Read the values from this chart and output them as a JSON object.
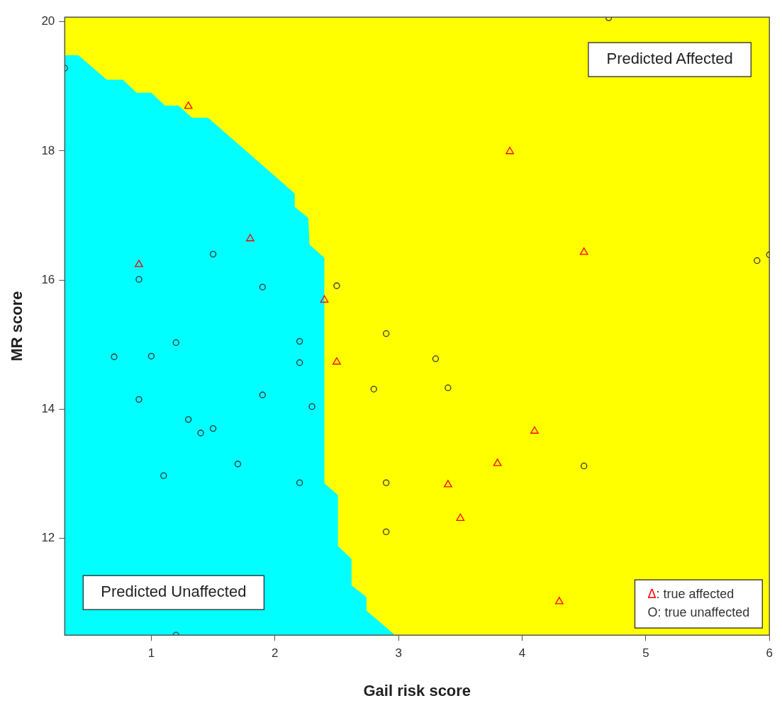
{
  "chart_data": {
    "type": "scatter",
    "xlabel": "Gail risk score",
    "ylabel": "MR score",
    "xlim": [
      0.3,
      6.0
    ],
    "ylim": [
      10.5,
      20.07
    ],
    "xticks": [
      1,
      2,
      3,
      4,
      5,
      6
    ],
    "yticks": [
      12,
      14,
      16,
      18,
      20
    ],
    "legend": "bottom right",
    "annotations": [
      "Predicted Affected",
      "Predicted Unaffected"
    ],
    "series": [
      {
        "type": "area",
        "color": "#00ffff",
        "x": [
          0.3,
          0.41,
          0.64,
          0.77,
          0.88,
          1.0,
          1.11,
          1.22,
          1.33,
          1.46,
          2.16,
          2.16,
          2.27,
          2.28,
          2.4,
          2.4,
          2.51,
          2.51,
          2.62,
          2.62,
          2.74,
          2.74,
          2.96
        ],
        "values": [
          19.48,
          19.48,
          19.1,
          19.1,
          18.9,
          18.9,
          18.7,
          18.7,
          18.51,
          18.51,
          17.34,
          17.13,
          16.96,
          16.55,
          16.34,
          12.85,
          12.67,
          11.88,
          11.68,
          11.27,
          11.09,
          10.88,
          10.52
        ]
      },
      {
        "name": "Δ: true affected",
        "marker": "triangle",
        "color": "#ff0000",
        "x": [
          1.3,
          3.9,
          1.8,
          0.9,
          4.5,
          2.4,
          2.5,
          4.1,
          3.8,
          3.4,
          3.5,
          4.3
        ],
        "values": [
          18.69,
          17.99,
          16.64,
          16.24,
          16.43,
          15.69,
          14.73,
          13.66,
          13.16,
          12.83,
          12.31,
          11.02
        ]
      },
      {
        "name": "O: true unaffected",
        "marker": "circle",
        "color": "#333333",
        "x": [
          0.3,
          4.7,
          5.9,
          6.0,
          1.5,
          0.9,
          1.9,
          2.5,
          2.2,
          0.7,
          1.0,
          1.2,
          2.2,
          0.9,
          1.9,
          2.3,
          1.3,
          1.5,
          1.4,
          1.7,
          1.1,
          2.2,
          2.9,
          2.9,
          1.2,
          2.9,
          3.3,
          2.8,
          3.4,
          4.5
        ],
        "values": [
          19.28,
          20.06,
          16.3,
          16.39,
          16.4,
          16.01,
          15.89,
          15.91,
          15.05,
          14.81,
          14.82,
          15.03,
          14.72,
          14.15,
          14.22,
          14.04,
          13.84,
          13.7,
          13.63,
          13.15,
          12.97,
          12.86,
          12.86,
          12.1,
          10.5,
          15.17,
          14.78,
          14.31,
          14.33,
          13.12
        ]
      }
    ]
  }
}
